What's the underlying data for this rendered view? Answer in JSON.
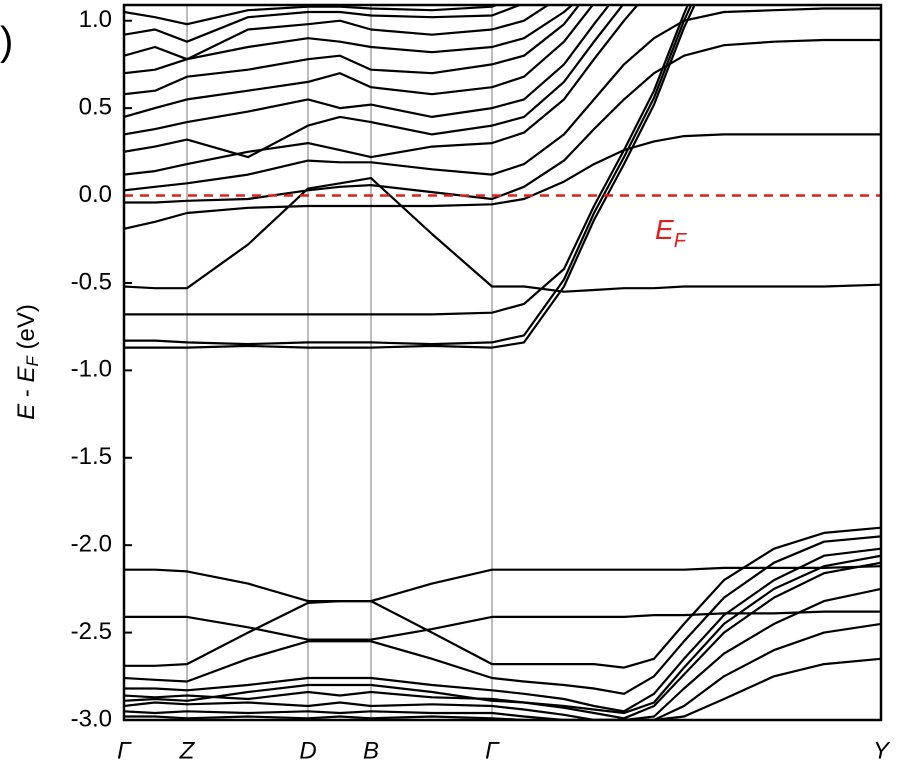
{
  "chart_data": {
    "type": "line",
    "panel_label": ")",
    "ylabel": [
      "E",
      " - ",
      "E",
      "F",
      " (eV)"
    ],
    "annotation": [
      "E",
      "F"
    ],
    "annotation_color": "#e02020",
    "fermi_level": 0,
    "color": "#000000",
    "grid_color": "#909090",
    "x": [
      0,
      31,
      63,
      124,
      184,
      216,
      247,
      308,
      368,
      400,
      440,
      470,
      500,
      530,
      560,
      600,
      650,
      700,
      757
    ],
    "xlim": [
      0,
      757
    ],
    "xticks": [
      {
        "value": 0,
        "label": "Γ"
      },
      {
        "value": 63,
        "label": "Z"
      },
      {
        "value": 184,
        "label": "D"
      },
      {
        "value": 247,
        "label": "B"
      },
      {
        "value": 368,
        "label": "Γ"
      },
      {
        "value": 757,
        "label": "Y"
      }
    ],
    "ylim": [
      -3.0,
      1.09
    ],
    "yticks": [
      {
        "value": -3,
        "label": "-3.0"
      },
      {
        "value": -2.5,
        "label": "-2.5"
      },
      {
        "value": -2,
        "label": "-2.0"
      },
      {
        "value": -1.5,
        "label": "-1.5"
      },
      {
        "value": -1,
        "label": "-1.0"
      },
      {
        "value": -0.5,
        "label": "-0.5"
      },
      {
        "value": 0,
        "label": "0.0"
      },
      {
        "value": 0.5,
        "label": "0.5"
      },
      {
        "value": 1,
        "label": "1.0"
      }
    ],
    "grid": true,
    "series": [
      {
        "values": [
          -0.87,
          -0.87,
          -0.87,
          -0.86,
          -0.87,
          -0.87,
          -0.87,
          -0.86,
          -0.87,
          -0.84,
          -0.52,
          -0.14,
          0.18,
          0.52,
          0.96,
          1.45,
          null,
          null,
          null
        ]
      },
      {
        "values": [
          -0.83,
          -0.83,
          -0.84,
          -0.85,
          -0.84,
          -0.84,
          -0.84,
          -0.85,
          -0.84,
          -0.8,
          -0.48,
          -0.1,
          0.22,
          0.56,
          1.0,
          1.5,
          null,
          null,
          null
        ]
      },
      {
        "values": [
          -0.68,
          -0.68,
          -0.68,
          -0.68,
          -0.68,
          -0.68,
          -0.68,
          -0.68,
          -0.67,
          -0.62,
          -0.42,
          -0.06,
          0.26,
          0.6,
          1.04,
          1.55,
          null,
          null,
          null
        ]
      },
      {
        "values": [
          -0.52,
          -0.53,
          -0.53,
          -0.28,
          0.04,
          0.07,
          0.1,
          -0.22,
          -0.52,
          -0.52,
          -0.55,
          -0.54,
          -0.53,
          -0.53,
          -0.52,
          -0.52,
          -0.52,
          -0.52,
          -0.51
        ]
      },
      {
        "values": [
          -0.19,
          -0.15,
          -0.1,
          -0.07,
          -0.06,
          -0.06,
          -0.06,
          -0.06,
          -0.05,
          -0.02,
          0.08,
          0.18,
          0.26,
          0.31,
          0.34,
          0.35,
          0.35,
          0.35,
          0.35
        ]
      },
      {
        "values": [
          -0.04,
          -0.04,
          -0.03,
          -0.02,
          0.03,
          0.05,
          0.06,
          0.02,
          -0.02,
          0.05,
          0.2,
          0.38,
          0.55,
          0.7,
          0.8,
          0.86,
          0.88,
          0.89,
          0.89
        ]
      },
      {
        "values": [
          0.03,
          0.05,
          0.07,
          0.12,
          0.2,
          0.19,
          0.19,
          0.15,
          0.12,
          0.18,
          0.35,
          0.55,
          0.75,
          0.9,
          1.0,
          1.05,
          1.06,
          1.07,
          1.07
        ]
      },
      {
        "values": [
          0.12,
          0.14,
          0.18,
          0.25,
          0.3,
          0.26,
          0.22,
          0.28,
          0.3,
          0.36,
          0.55,
          0.78,
          1.0,
          1.2,
          null,
          null,
          null,
          null,
          null
        ]
      },
      {
        "values": [
          0.25,
          0.28,
          0.32,
          0.22,
          0.4,
          0.45,
          0.42,
          0.35,
          0.4,
          0.45,
          0.65,
          0.88,
          1.1,
          null,
          null,
          null,
          null,
          null,
          null
        ]
      },
      {
        "values": [
          0.35,
          0.38,
          0.42,
          0.48,
          0.55,
          0.5,
          0.52,
          0.45,
          0.5,
          0.55,
          0.75,
          0.98,
          1.2,
          null,
          null,
          null,
          null,
          null,
          null
        ]
      },
      {
        "values": [
          0.45,
          0.5,
          0.55,
          0.6,
          0.65,
          0.7,
          0.62,
          0.58,
          0.62,
          0.68,
          0.88,
          1.1,
          null,
          null,
          null,
          null,
          null,
          null,
          null
        ]
      },
      {
        "values": [
          0.58,
          0.6,
          0.68,
          0.72,
          0.78,
          0.8,
          0.72,
          0.7,
          0.75,
          0.8,
          0.98,
          1.2,
          null,
          null,
          null,
          null,
          null,
          null,
          null
        ]
      },
      {
        "values": [
          0.7,
          0.72,
          0.78,
          0.85,
          0.9,
          0.88,
          0.85,
          0.82,
          0.85,
          0.9,
          1.05,
          1.2,
          null,
          null,
          null,
          null,
          null,
          null,
          null
        ]
      },
      {
        "values": [
          0.8,
          0.85,
          0.78,
          0.95,
          0.98,
          1.0,
          0.95,
          0.92,
          0.95,
          1.0,
          1.15,
          null,
          null,
          null,
          null,
          null,
          null,
          null,
          null
        ]
      },
      {
        "values": [
          0.92,
          0.95,
          0.88,
          1.02,
          1.05,
          1.05,
          1.03,
          1.02,
          1.03,
          1.1,
          null,
          null,
          null,
          null,
          null,
          null,
          null,
          null,
          null
        ]
      },
      {
        "values": [
          1.05,
          1.02,
          0.98,
          1.06,
          1.08,
          1.08,
          1.07,
          1.06,
          1.08,
          1.15,
          null,
          null,
          null,
          null,
          null,
          null,
          null,
          null,
          null
        ]
      },
      {
        "values": [
          -2.14,
          -2.14,
          -2.15,
          -2.22,
          -2.32,
          -2.32,
          -2.32,
          -2.22,
          -2.14,
          -2.14,
          -2.14,
          -2.14,
          -2.14,
          -2.14,
          -2.14,
          -2.13,
          -2.13,
          -2.13,
          -2.12
        ]
      },
      {
        "values": [
          -2.41,
          -2.41,
          -2.41,
          -2.47,
          -2.54,
          -2.54,
          -2.54,
          -2.48,
          -2.41,
          -2.41,
          -2.41,
          -2.41,
          -2.41,
          -2.4,
          -2.4,
          -2.39,
          -2.39,
          -2.38,
          -2.38
        ]
      },
      {
        "values": [
          -2.69,
          -2.69,
          -2.68,
          -2.5,
          -2.33,
          -2.32,
          -2.32,
          -2.5,
          -2.68,
          -2.68,
          -2.68,
          -2.68,
          -2.7,
          -2.65,
          -2.45,
          -2.2,
          -2.02,
          -1.93,
          -1.9
        ]
      },
      {
        "values": [
          -2.76,
          -2.77,
          -2.78,
          -2.65,
          -2.55,
          -2.55,
          -2.55,
          -2.65,
          -2.76,
          -2.78,
          -2.8,
          -2.82,
          -2.85,
          -2.75,
          -2.55,
          -2.3,
          -2.1,
          -1.98,
          -1.95
        ]
      },
      {
        "values": [
          -2.82,
          -2.82,
          -2.83,
          -2.8,
          -2.76,
          -2.76,
          -2.76,
          -2.8,
          -2.83,
          -2.85,
          -2.88,
          -2.92,
          -2.95,
          -2.85,
          -2.65,
          -2.4,
          -2.2,
          -2.06,
          -2.02
        ]
      },
      {
        "values": [
          -2.86,
          -2.87,
          -2.86,
          -2.88,
          -2.84,
          -2.86,
          -2.84,
          -2.87,
          -2.88,
          -2.9,
          -2.93,
          -2.96,
          -2.99,
          -2.92,
          -2.74,
          -2.5,
          -2.3,
          -2.16,
          -2.1
        ]
      },
      {
        "values": [
          -2.89,
          -2.88,
          -2.89,
          -2.84,
          -2.8,
          -2.8,
          -2.8,
          -2.84,
          -2.89,
          -2.9,
          -2.92,
          -2.94,
          -2.96,
          -2.9,
          -2.7,
          -2.45,
          -2.25,
          -2.12,
          -2.06
        ]
      },
      {
        "values": [
          -2.92,
          -2.9,
          -2.91,
          -2.9,
          -2.92,
          -2.9,
          -2.92,
          -2.91,
          -2.92,
          -2.94,
          -2.97,
          -3.0,
          -3.0,
          -2.98,
          -2.82,
          -2.62,
          -2.45,
          -2.32,
          -2.25
        ]
      },
      {
        "values": [
          -2.95,
          -2.96,
          -2.95,
          -2.96,
          -2.95,
          -2.96,
          -2.95,
          -2.96,
          -2.96,
          -2.98,
          -3.0,
          -3.0,
          -3.0,
          -3.0,
          -2.92,
          -2.75,
          -2.6,
          -2.5,
          -2.45
        ]
      },
      {
        "values": [
          -2.98,
          -2.98,
          -2.99,
          -2.98,
          -2.99,
          -2.98,
          -2.99,
          -2.98,
          -2.99,
          -3.0,
          -3.0,
          -3.0,
          -3.0,
          -3.0,
          -2.98,
          -2.88,
          -2.75,
          -2.68,
          -2.65
        ]
      }
    ]
  }
}
